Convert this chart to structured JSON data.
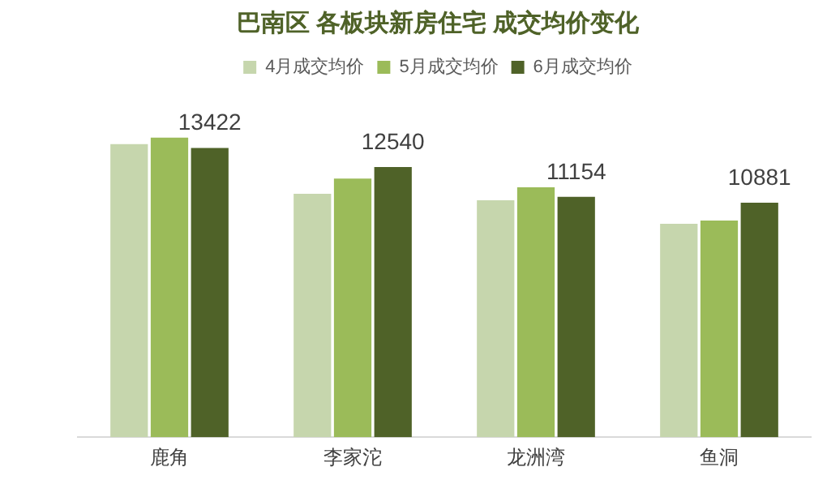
{
  "chart_data": {
    "type": "bar",
    "title": "巴南区 各板块新房住宅 成交均价变化",
    "categories": [
      "鹿角",
      "李家沱",
      "龙洲湾",
      "鱼洞"
    ],
    "series": [
      {
        "name": "4月成交均价",
        "color": "#c6d6ad",
        "values": [
          13600,
          11300,
          11000,
          9900
        ]
      },
      {
        "name": "5月成交均价",
        "color": "#9bbb59",
        "values": [
          13900,
          12000,
          11600,
          10050
        ]
      },
      {
        "name": "6月成交均价",
        "color": "#4f6228",
        "values": [
          13422,
          12540,
          11154,
          10881
        ],
        "value_labels": [
          "13422",
          "12540",
          "11154",
          "10881"
        ]
      }
    ],
    "tick_labels": "x",
    "grid": false,
    "legend": "top"
  }
}
